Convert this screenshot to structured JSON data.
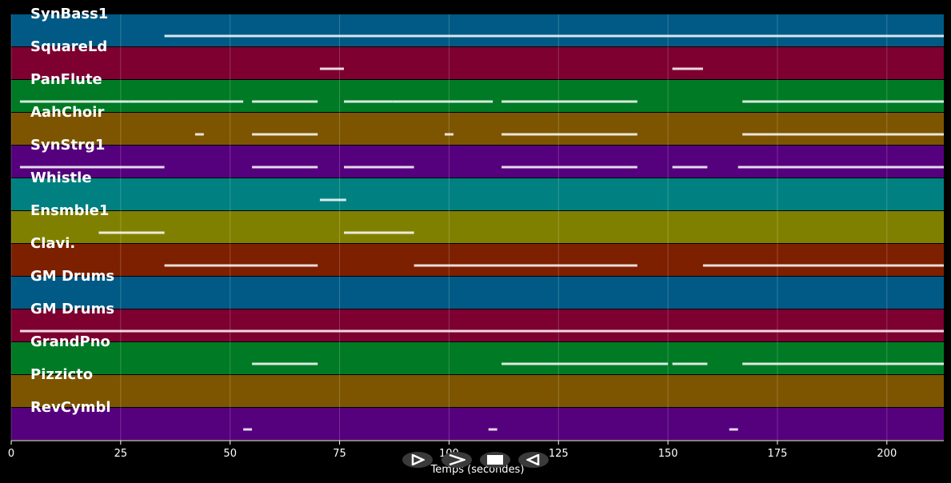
{
  "window": {
    "background": "#000000"
  },
  "tracks": [
    {
      "label": "SynBass1",
      "color": "#005a85"
    },
    {
      "label": "SquareLd",
      "color": "#7d0030"
    },
    {
      "label": "PanFlute",
      "color": "#007a25"
    },
    {
      "label": "AahChoir",
      "color": "#7d5500"
    },
    {
      "label": "SynStrg1",
      "color": "#55007d"
    },
    {
      "label": "Whistle",
      "color": "#008080"
    },
    {
      "label": "Ensmble1",
      "color": "#808000"
    },
    {
      "label": "Clavi.",
      "color": "#7d2000"
    },
    {
      "label": "GM Drums",
      "color": "#005a85"
    },
    {
      "label": "GM Drums",
      "color": "#7d0030"
    },
    {
      "label": "GrandPno",
      "color": "#007a25"
    },
    {
      "label": "Pizzicto",
      "color": "#7d5500"
    },
    {
      "label": "RevCymbl",
      "color": "#55007d"
    }
  ],
  "xaxis": {
    "title": "Temps (secondes)",
    "range": [
      0,
      213
    ],
    "ticks": [
      "0",
      "25",
      "50",
      "75",
      "100",
      "125",
      "150",
      "175",
      "200"
    ]
  },
  "playback_controls": [
    {
      "name": "play-button",
      "icon": "play-icon"
    },
    {
      "name": "fast-forward-button",
      "icon": "fast-forward-icon"
    },
    {
      "name": "stop-button",
      "icon": "stop-icon"
    },
    {
      "name": "rewind-button",
      "icon": "rewind-icon"
    }
  ],
  "segments": [
    [
      [
        35,
        213
      ]
    ],
    [
      [
        70.5,
        76
      ],
      [
        151,
        158
      ]
    ],
    [
      [
        2,
        27
      ],
      [
        27,
        37
      ],
      [
        37,
        53
      ],
      [
        55,
        70
      ],
      [
        76,
        87
      ],
      [
        87,
        98
      ],
      [
        98,
        110
      ],
      [
        112,
        143
      ],
      [
        167,
        213
      ]
    ],
    [
      [
        42,
        44
      ],
      [
        55,
        70
      ],
      [
        99,
        101
      ],
      [
        112,
        143
      ],
      [
        167,
        213
      ]
    ],
    [
      [
        2,
        35
      ],
      [
        55,
        70
      ],
      [
        76,
        92
      ],
      [
        112,
        143
      ],
      [
        151,
        159
      ],
      [
        166,
        213
      ]
    ],
    [
      [
        70.5,
        76.5
      ]
    ],
    [
      [
        20,
        35
      ],
      [
        76,
        92
      ]
    ],
    [
      [
        35,
        70
      ],
      [
        92,
        143
      ],
      [
        158,
        213
      ]
    ],
    [],
    [
      [
        2,
        213
      ]
    ],
    [
      [
        55,
        70
      ],
      [
        112,
        150
      ],
      [
        151,
        159
      ],
      [
        167,
        213
      ]
    ],
    [],
    [
      [
        53,
        55
      ],
      [
        109,
        111
      ],
      [
        164,
        166
      ]
    ]
  ]
}
